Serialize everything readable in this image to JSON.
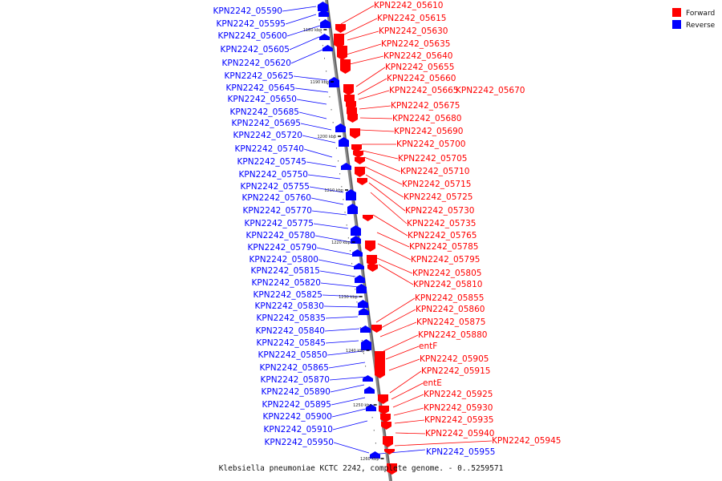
{
  "caption": "Klebsiella pneumoniae KCTC 2242, complete genome. - 0..5259571",
  "colors": {
    "forward": "#ff0000",
    "reverse": "#0000ff",
    "backbone": "#777777"
  },
  "legend": [
    {
      "label": "Forward",
      "color": "#ff0000"
    },
    {
      "label": "Reverse",
      "color": "#0000ff"
    }
  ],
  "ticks": [
    "1180 kbp",
    "1190 kbp",
    "1200 kbp",
    "1210 kbp",
    "1220 kbp",
    "1230 kbp",
    "1240 kbp",
    "1250 kbp",
    "1260 kbp"
  ],
  "reverse_genes": [
    "KPN2242_05590",
    "KPN2242_05595",
    "KPN2242_05600",
    "KPN2242_05605",
    "KPN2242_05620",
    "KPN2242_05625",
    "KPN2242_05645",
    "KPN2242_05650",
    "KPN2242_05685",
    "KPN2242_05695",
    "KPN2242_05720",
    "KPN2242_05740",
    "KPN2242_05745",
    "KPN2242_05750",
    "KPN2242_05755",
    "KPN2242_05760",
    "KPN2242_05770",
    "KPN2242_05775",
    "KPN2242_05780",
    "KPN2242_05790",
    "KPN2242_05800",
    "KPN2242_05815",
    "KPN2242_05820",
    "KPN2242_05825",
    "KPN2242_05830",
    "KPN2242_05835",
    "KPN2242_05840",
    "KPN2242_05845",
    "KPN2242_05850",
    "KPN2242_05865",
    "KPN2242_05870",
    "KPN2242_05890",
    "KPN2242_05895",
    "KPN2242_05900",
    "KPN2242_05910",
    "KPN2242_05950"
  ],
  "forward_genes": [
    "KPN2242_05610",
    "KPN2242_05615",
    "KPN2242_05630",
    "KPN2242_05635",
    "KPN2242_05640",
    "KPN2242_05655",
    "KPN2242_05660",
    "KPN2242_05665",
    "KPN2242_05670",
    "KPN2242_05675",
    "KPN2242_05680",
    "KPN2242_05690",
    "KPN2242_05700",
    "KPN2242_05705",
    "KPN2242_05710",
    "KPN2242_05715",
    "KPN2242_05725",
    "KPN2242_05730",
    "KPN2242_05735",
    "KPN2242_05765",
    "KPN2242_05785",
    "KPN2242_05795",
    "KPN2242_05805",
    "KPN2242_05810",
    "KPN2242_05855",
    "KPN2242_05860",
    "KPN2242_05875",
    "KPN2242_05880",
    "entF",
    "KPN2242_05905",
    "KPN2242_05915",
    "entE",
    "KPN2242_05925",
    "KPN2242_05930",
    "KPN2242_05935",
    "KPN2242_05940",
    "KPN2242_05945"
  ],
  "extra_reverse_gene": "KPN2242_05955"
}
